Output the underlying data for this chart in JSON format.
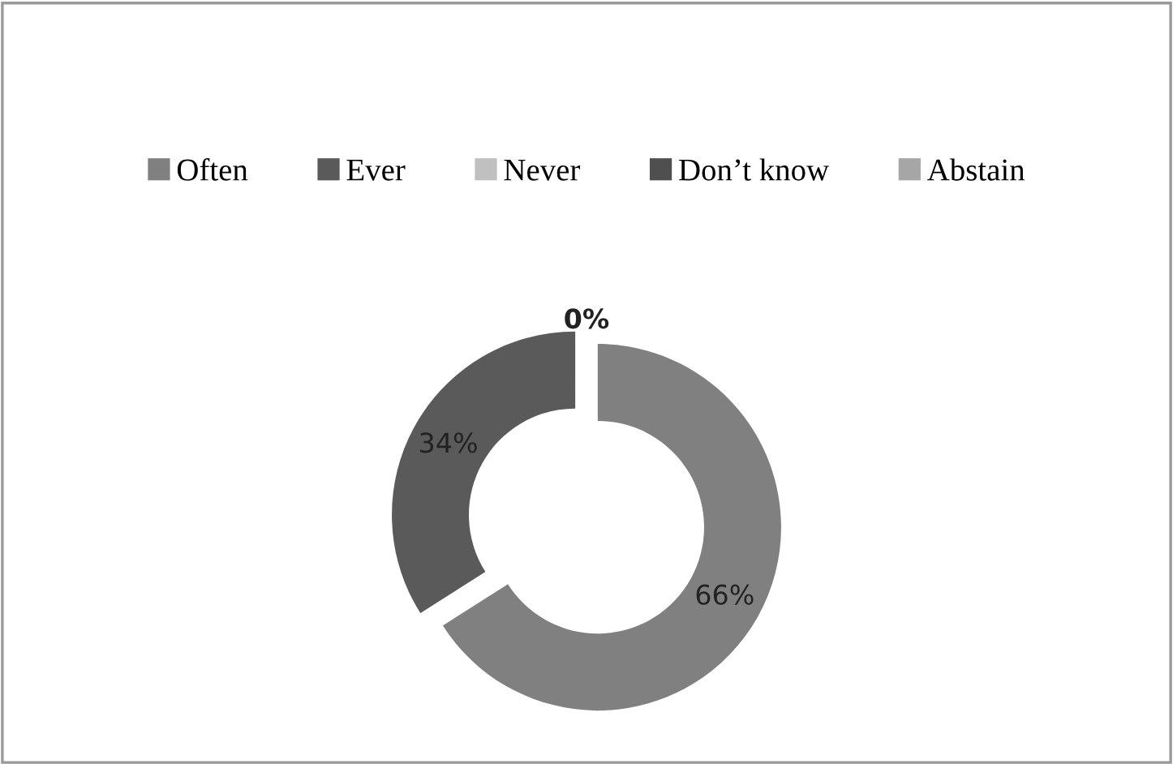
{
  "chart_data": {
    "type": "donut",
    "categories": [
      "Often",
      "Ever",
      "Never",
      "Don’t know",
      "Abstain"
    ],
    "values": [
      66,
      34,
      0,
      0,
      0
    ],
    "colors": [
      "#808080",
      "#5a5a5a",
      "#c0c0c0",
      "#4f4f4f",
      "#a6a6a6"
    ],
    "value_labels": [
      "66%",
      "34%",
      "0%",
      null,
      null
    ],
    "legend": "top"
  }
}
